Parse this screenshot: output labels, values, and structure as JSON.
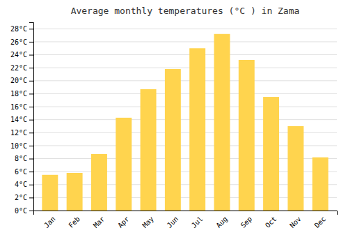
{
  "chart_data": {
    "type": "bar",
    "title": "Average monthly temperatures (°C ) in Zama",
    "categories": [
      "Jan",
      "Feb",
      "Mar",
      "Apr",
      "May",
      "Jun",
      "Jul",
      "Aug",
      "Sep",
      "Oct",
      "Nov",
      "Dec"
    ],
    "values": [
      5.5,
      5.8,
      8.7,
      14.3,
      18.7,
      21.8,
      25.0,
      27.2,
      23.2,
      17.5,
      13.0,
      8.2
    ],
    "color": "#FFD44E",
    "ylim": [
      0,
      29
    ],
    "yticks": [
      {
        "value": 0,
        "label": "0°C"
      },
      {
        "value": 2,
        "label": "2°C"
      },
      {
        "value": 4,
        "label": "4°C"
      },
      {
        "value": 6,
        "label": "6°C"
      },
      {
        "value": 8,
        "label": "8°C"
      },
      {
        "value": 10,
        "label": "10°C"
      },
      {
        "value": 12,
        "label": "12°C"
      },
      {
        "value": 14,
        "label": "14°C"
      },
      {
        "value": 16,
        "label": "16°C"
      },
      {
        "value": 18,
        "label": "18°C"
      },
      {
        "value": 20,
        "label": "20°C"
      },
      {
        "value": 22,
        "label": "22°C"
      },
      {
        "value": 24,
        "label": "24°C"
      },
      {
        "value": 26,
        "label": "26°C"
      },
      {
        "value": 28,
        "label": "28°C"
      }
    ],
    "grid": true
  }
}
